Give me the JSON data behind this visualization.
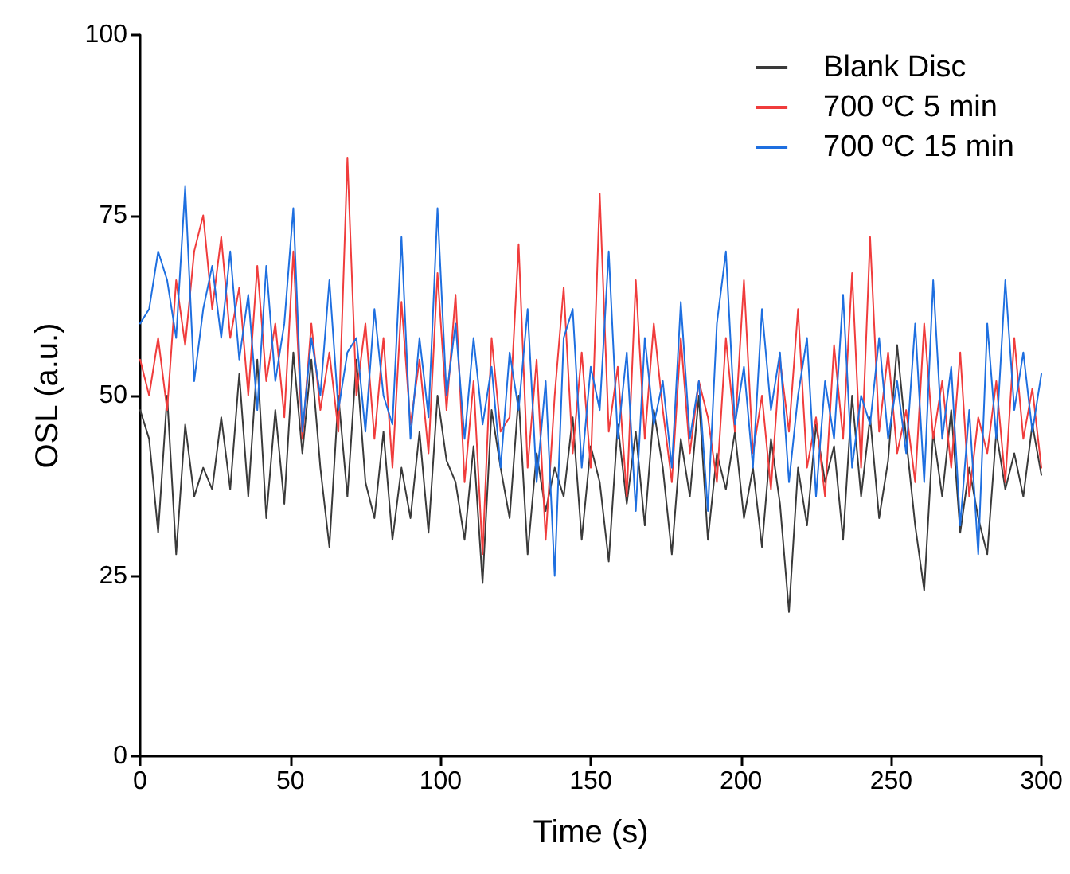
{
  "chart_data": {
    "type": "line",
    "xlabel": "Time (s)",
    "ylabel": "OSL (a.u.)",
    "x": [
      0,
      3,
      6,
      9,
      12,
      15,
      18,
      21,
      24,
      27,
      30,
      33,
      36,
      39,
      42,
      45,
      48,
      51,
      54,
      57,
      60,
      63,
      66,
      69,
      72,
      75,
      78,
      81,
      84,
      87,
      90,
      93,
      96,
      99,
      102,
      105,
      108,
      111,
      114,
      117,
      120,
      123,
      126,
      129,
      132,
      135,
      138,
      141,
      144,
      147,
      150,
      153,
      156,
      159,
      162,
      165,
      168,
      171,
      174,
      177,
      180,
      183,
      186,
      189,
      192,
      195,
      198,
      201,
      204,
      207,
      210,
      213,
      216,
      219,
      222,
      225,
      228,
      231,
      234,
      237,
      240,
      243,
      246,
      249,
      252,
      255,
      258,
      261,
      264,
      267,
      270,
      273,
      276,
      279,
      282,
      285,
      288,
      291,
      294,
      297,
      300
    ],
    "series": [
      {
        "name": "Blank Disc",
        "color": "#3a3a3a",
        "values": [
          48,
          44,
          31,
          50,
          28,
          46,
          36,
          40,
          37,
          47,
          37,
          53,
          36,
          55,
          33,
          48,
          35,
          56,
          42,
          55,
          40,
          29,
          50,
          36,
          55,
          38,
          33,
          45,
          30,
          40,
          33,
          45,
          31,
          50,
          41,
          38,
          30,
          43,
          24,
          48,
          40,
          33,
          50,
          28,
          42,
          34,
          40,
          36,
          47,
          30,
          43,
          38,
          27,
          46,
          35,
          45,
          32,
          48,
          40,
          28,
          44,
          36,
          50,
          30,
          42,
          37,
          45,
          33,
          40,
          29,
          44,
          35,
          20,
          40,
          32,
          46,
          38,
          43,
          30,
          50,
          36,
          47,
          33,
          41,
          57,
          44,
          32,
          23,
          45,
          36,
          48,
          31,
          40,
          33,
          28,
          45,
          37,
          42,
          36,
          46,
          39
        ]
      },
      {
        "name": "700 ºC 5 min",
        "color": "#f03c3c",
        "values": [
          55,
          50,
          58,
          48,
          66,
          57,
          70,
          75,
          62,
          72,
          58,
          65,
          50,
          68,
          52,
          60,
          47,
          70,
          44,
          60,
          48,
          56,
          45,
          83,
          50,
          60,
          44,
          58,
          40,
          63,
          46,
          55,
          42,
          67,
          48,
          64,
          38,
          52,
          28,
          58,
          45,
          47,
          71,
          40,
          55,
          30,
          50,
          65,
          42,
          56,
          40,
          78,
          45,
          54,
          36,
          66,
          44,
          60,
          48,
          38,
          58,
          42,
          52,
          47,
          38,
          58,
          45,
          66,
          42,
          50,
          37,
          55,
          45,
          62,
          40,
          47,
          36,
          57,
          44,
          67,
          40,
          72,
          45,
          56,
          42,
          48,
          38,
          60,
          44,
          52,
          40,
          56,
          36,
          47,
          42,
          52,
          38,
          58,
          44,
          51,
          40
        ]
      },
      {
        "name": "700 ºC 15 min",
        "color": "#1e6fe0",
        "values": [
          60,
          62,
          70,
          66,
          58,
          79,
          52,
          62,
          68,
          58,
          70,
          55,
          64,
          48,
          68,
          52,
          60,
          76,
          45,
          58,
          50,
          66,
          48,
          56,
          58,
          45,
          62,
          50,
          46,
          72,
          44,
          58,
          47,
          76,
          50,
          60,
          44,
          58,
          46,
          54,
          40,
          56,
          48,
          62,
          38,
          52,
          25,
          58,
          62,
          40,
          54,
          48,
          70,
          44,
          56,
          34,
          58,
          46,
          52,
          40,
          63,
          44,
          52,
          34,
          60,
          70,
          46,
          54,
          40,
          62,
          48,
          56,
          38,
          50,
          58,
          36,
          52,
          44,
          64,
          40,
          50,
          46,
          58,
          44,
          52,
          42,
          60,
          38,
          66,
          44,
          54,
          32,
          48,
          28,
          60,
          44,
          66,
          48,
          56,
          45,
          53
        ]
      }
    ],
    "xlim": [
      0,
      300
    ],
    "xticks": [
      0,
      50,
      100,
      150,
      200,
      250,
      300
    ],
    "ylim": [
      0,
      100
    ],
    "yticks": [
      0,
      25,
      50,
      75,
      100
    ],
    "legend": "top right",
    "grid": false,
    "marker": "none",
    "line_style": "solid"
  }
}
